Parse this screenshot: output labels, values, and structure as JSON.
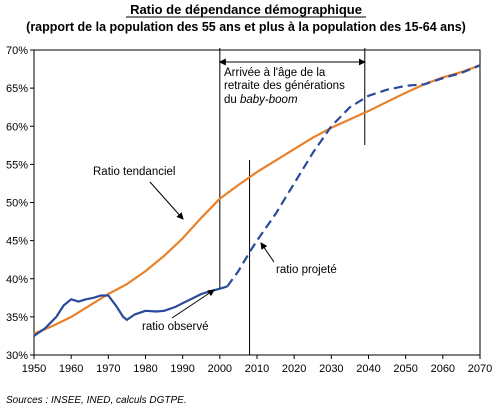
{
  "chart_data": {
    "type": "line",
    "title": "Ratio de dépendance démographique",
    "subtitle": "(rapport de la population des 55 ans et plus à la population des 15-64 ans)",
    "xlabel": "",
    "ylabel": "",
    "xlim": [
      1950,
      2070
    ],
    "ylim": [
      30,
      70
    ],
    "x_ticks": [
      1950,
      1960,
      1970,
      1980,
      1990,
      2000,
      2010,
      2020,
      2030,
      2040,
      2050,
      2060,
      2070
    ],
    "y_ticks": [
      30,
      35,
      40,
      45,
      50,
      55,
      60,
      65,
      70
    ],
    "y_tick_suffix": "%",
    "grid": false,
    "series": [
      {
        "name": "Ratio tendanciel",
        "style": "solid",
        "color": "#E8822A",
        "x": [
          1950,
          1955,
          1960,
          1965,
          1970,
          1975,
          1980,
          1985,
          1990,
          1995,
          2000,
          2005,
          2010,
          2015,
          2020,
          2025,
          2030,
          2035,
          2040,
          2045,
          2050,
          2055,
          2060,
          2065,
          2070
        ],
        "y": [
          32.8,
          33.8,
          35.0,
          36.5,
          38.0,
          39.3,
          41.0,
          43.0,
          45.3,
          48.0,
          50.5,
          52.3,
          54.0,
          55.5,
          57.0,
          58.5,
          59.8,
          60.9,
          62.0,
          63.2,
          64.4,
          65.5,
          66.4,
          67.1,
          68.0
        ]
      },
      {
        "name": "ratio observé",
        "style": "solid",
        "color": "#2B4A9C",
        "x": [
          1950,
          1953,
          1956,
          1958,
          1960,
          1962,
          1964,
          1966,
          1968,
          1970,
          1972,
          1974,
          1975,
          1977,
          1980,
          1983,
          1985,
          1988,
          1990,
          1993,
          1995,
          1997,
          2000,
          2002
        ],
        "y": [
          32.5,
          33.5,
          35.0,
          36.5,
          37.3,
          37.0,
          37.3,
          37.5,
          37.8,
          37.8,
          36.5,
          35.0,
          34.6,
          35.3,
          35.8,
          35.7,
          35.8,
          36.3,
          36.8,
          37.5,
          38.0,
          38.3,
          38.7,
          39.0
        ]
      },
      {
        "name": "ratio projeté",
        "style": "dashed",
        "color": "#2B4A9C",
        "x": [
          2002,
          2005,
          2008,
          2010,
          2015,
          2020,
          2025,
          2030,
          2035,
          2040,
          2045,
          2050,
          2055,
          2060,
          2065,
          2070
        ],
        "y": [
          39.0,
          41.0,
          43.5,
          45.0,
          48.5,
          52.5,
          56.5,
          60.0,
          62.5,
          64.0,
          64.8,
          65.3,
          65.5,
          66.3,
          67.0,
          68.0
        ]
      }
    ],
    "annotations": [
      {
        "lines": [
          "Arrivée à l'âge de la",
          "retraite des générations"
        ],
        "line3_prefix": "du ",
        "line3_italic": "baby-boom"
      },
      {
        "label": "Ratio tendanciel"
      },
      {
        "label": "ratio observé"
      },
      {
        "label": "ratio projeté"
      }
    ],
    "reference_years": {
      "bracket_start": 2000,
      "bracket_end": 2039,
      "current_line": 2008
    }
  },
  "source": "Sources : INSEE, INED, calculs DGTPE."
}
